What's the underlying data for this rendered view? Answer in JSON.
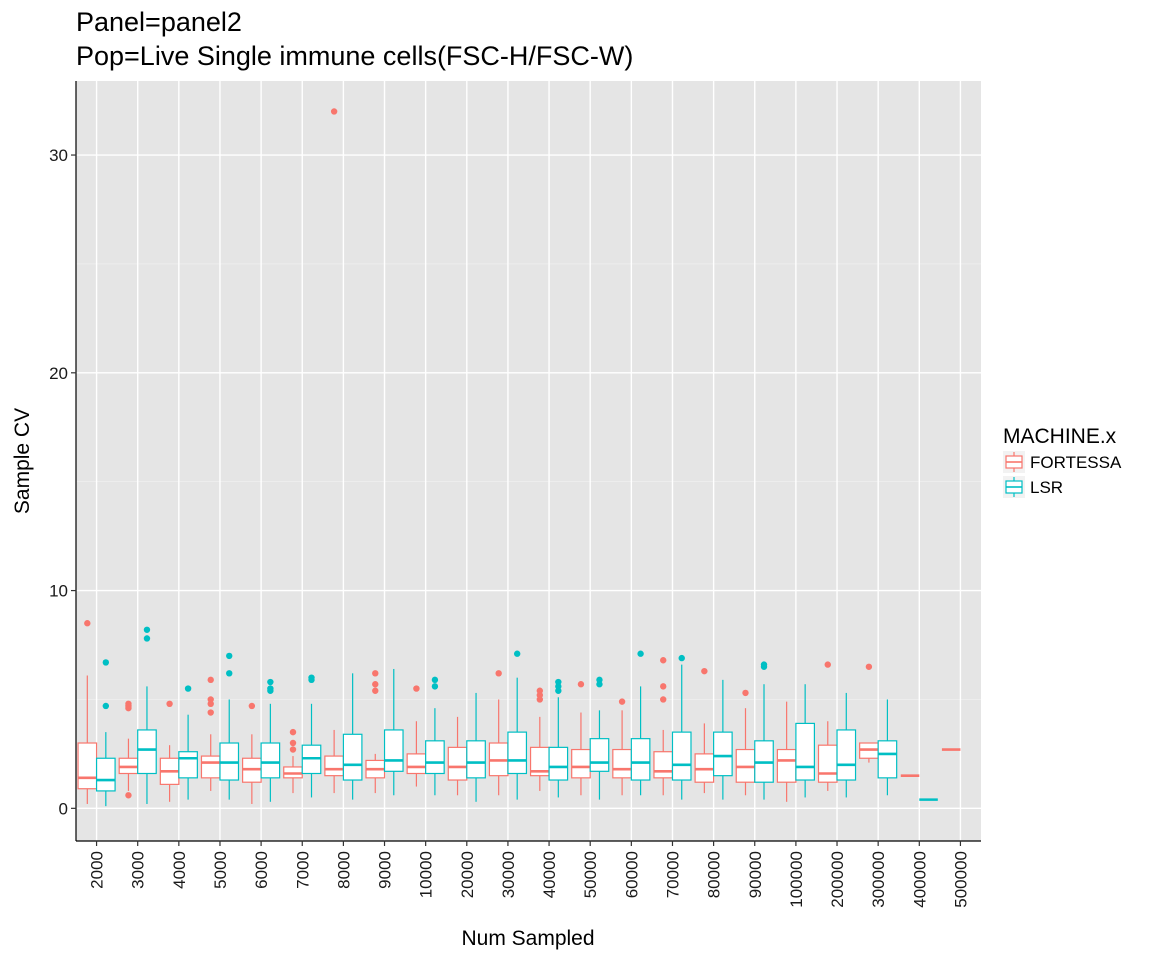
{
  "chart_data": {
    "type": "box",
    "title": "Panel=panel2",
    "subtitle": "Pop=Live Single immune cells(FSC-H/FSC-W)",
    "xlabel": "Num Sampled",
    "ylabel": "Sample CV",
    "ylim": [
      -1.5,
      33.4
    ],
    "y_ticks": [
      0,
      10,
      20,
      30
    ],
    "grid": true,
    "legend": {
      "title": "MACHINE.x",
      "placement": "right"
    },
    "categories": [
      "2000",
      "3000",
      "4000",
      "5000",
      "6000",
      "7000",
      "8000",
      "9000",
      "10000",
      "20000",
      "30000",
      "40000",
      "50000",
      "60000",
      "70000",
      "80000",
      "90000",
      "100000",
      "200000",
      "300000",
      "400000",
      "500000"
    ],
    "series": [
      {
        "name": "FORTESSA",
        "color": "#F8766D",
        "boxes": [
          {
            "cat": "2000",
            "q1": 0.9,
            "median": 1.4,
            "q3": 3.0,
            "lower": 0.2,
            "upper": 6.1,
            "outliers": [
              8.5
            ]
          },
          {
            "cat": "3000",
            "q1": 1.6,
            "median": 1.9,
            "q3": 2.3,
            "lower": 0.8,
            "upper": 3.2,
            "outliers": [
              4.6,
              4.7,
              4.8,
              0.6
            ]
          },
          {
            "cat": "4000",
            "q1": 1.1,
            "median": 1.7,
            "q3": 2.3,
            "lower": 0.3,
            "upper": 2.9,
            "outliers": [
              4.8
            ]
          },
          {
            "cat": "5000",
            "q1": 1.4,
            "median": 2.1,
            "q3": 2.4,
            "lower": 0.8,
            "upper": 3.4,
            "outliers": [
              4.4,
              4.8,
              5.0,
              5.9
            ]
          },
          {
            "cat": "6000",
            "q1": 1.2,
            "median": 1.8,
            "q3": 2.3,
            "lower": 0.2,
            "upper": 3.4,
            "outliers": [
              4.7
            ]
          },
          {
            "cat": "7000",
            "q1": 1.4,
            "median": 1.6,
            "q3": 1.9,
            "lower": 0.7,
            "upper": 2.4,
            "outliers": [
              2.7,
              3.0,
              3.5
            ]
          },
          {
            "cat": "8000",
            "q1": 1.5,
            "median": 1.8,
            "q3": 2.4,
            "lower": 0.7,
            "upper": 3.6,
            "outliers": [
              32.0
            ]
          },
          {
            "cat": "9000",
            "q1": 1.4,
            "median": 1.8,
            "q3": 2.2,
            "lower": 0.7,
            "upper": 2.5,
            "outliers": [
              5.4,
              5.7,
              6.2
            ]
          },
          {
            "cat": "10000",
            "q1": 1.6,
            "median": 1.9,
            "q3": 2.5,
            "lower": 1.0,
            "upper": 4.0,
            "outliers": [
              5.5
            ]
          },
          {
            "cat": "20000",
            "q1": 1.3,
            "median": 1.9,
            "q3": 2.8,
            "lower": 0.6,
            "upper": 4.2,
            "outliers": []
          },
          {
            "cat": "30000",
            "q1": 1.5,
            "median": 2.2,
            "q3": 3.0,
            "lower": 0.6,
            "upper": 5.0,
            "outliers": [
              6.2
            ]
          },
          {
            "cat": "40000",
            "q1": 1.5,
            "median": 1.7,
            "q3": 2.8,
            "lower": 0.8,
            "upper": 4.2,
            "outliers": [
              5.0,
              5.2,
              5.4
            ]
          },
          {
            "cat": "50000",
            "q1": 1.4,
            "median": 1.9,
            "q3": 2.7,
            "lower": 0.6,
            "upper": 4.4,
            "outliers": [
              5.7
            ]
          },
          {
            "cat": "60000",
            "q1": 1.4,
            "median": 1.8,
            "q3": 2.7,
            "lower": 0.6,
            "upper": 4.5,
            "outliers": [
              4.9
            ]
          },
          {
            "cat": "70000",
            "q1": 1.4,
            "median": 1.7,
            "q3": 2.6,
            "lower": 0.6,
            "upper": 3.6,
            "outliers": [
              5.0,
              5.6,
              6.8
            ]
          },
          {
            "cat": "80000",
            "q1": 1.2,
            "median": 1.8,
            "q3": 2.5,
            "lower": 0.7,
            "upper": 3.9,
            "outliers": [
              6.3
            ]
          },
          {
            "cat": "90000",
            "q1": 1.2,
            "median": 1.9,
            "q3": 2.7,
            "lower": 0.6,
            "upper": 4.6,
            "outliers": [
              5.3
            ]
          },
          {
            "cat": "100000",
            "q1": 1.2,
            "median": 2.2,
            "q3": 2.7,
            "lower": 0.3,
            "upper": 4.9,
            "outliers": []
          },
          {
            "cat": "200000",
            "q1": 1.2,
            "median": 1.6,
            "q3": 2.9,
            "lower": 0.8,
            "upper": 4.0,
            "outliers": [
              6.6
            ]
          },
          {
            "cat": "300000",
            "q1": 2.3,
            "median": 2.7,
            "q3": 3.0,
            "lower": 2.1,
            "upper": 3.0,
            "outliers": [
              6.5
            ]
          },
          {
            "cat": "400000",
            "q1": 1.5,
            "median": 1.5,
            "q3": 1.5,
            "lower": 1.5,
            "upper": 1.5,
            "outliers": []
          },
          {
            "cat": "500000",
            "q1": 2.7,
            "median": 2.7,
            "q3": 2.7,
            "lower": 2.7,
            "upper": 2.7,
            "outliers": []
          }
        ]
      },
      {
        "name": "LSR",
        "color": "#00BFC4",
        "boxes": [
          {
            "cat": "2000",
            "q1": 0.8,
            "median": 1.3,
            "q3": 2.3,
            "lower": 0.1,
            "upper": 3.5,
            "outliers": [
              4.7,
              6.7
            ]
          },
          {
            "cat": "3000",
            "q1": 1.6,
            "median": 2.7,
            "q3": 3.6,
            "lower": 0.2,
            "upper": 5.6,
            "outliers": [
              7.8,
              8.2
            ]
          },
          {
            "cat": "4000",
            "q1": 1.4,
            "median": 2.3,
            "q3": 2.6,
            "lower": 0.4,
            "upper": 4.3,
            "outliers": [
              5.5
            ]
          },
          {
            "cat": "5000",
            "q1": 1.3,
            "median": 2.1,
            "q3": 3.0,
            "lower": 0.4,
            "upper": 5.0,
            "outliers": [
              6.2,
              7.0
            ]
          },
          {
            "cat": "6000",
            "q1": 1.4,
            "median": 2.1,
            "q3": 3.0,
            "lower": 0.3,
            "upper": 4.8,
            "outliers": [
              5.4,
              5.5,
              5.8
            ]
          },
          {
            "cat": "7000",
            "q1": 1.6,
            "median": 2.3,
            "q3": 2.9,
            "lower": 0.5,
            "upper": 4.8,
            "outliers": [
              5.9,
              6.0
            ]
          },
          {
            "cat": "8000",
            "q1": 1.3,
            "median": 2.0,
            "q3": 3.4,
            "lower": 0.4,
            "upper": 6.2,
            "outliers": []
          },
          {
            "cat": "9000",
            "q1": 1.7,
            "median": 2.2,
            "q3": 3.6,
            "lower": 0.6,
            "upper": 6.4,
            "outliers": []
          },
          {
            "cat": "10000",
            "q1": 1.6,
            "median": 2.1,
            "q3": 3.1,
            "lower": 0.6,
            "upper": 4.6,
            "outliers": [
              5.6,
              5.9
            ]
          },
          {
            "cat": "20000",
            "q1": 1.4,
            "median": 2.1,
            "q3": 3.1,
            "lower": 0.3,
            "upper": 5.3,
            "outliers": []
          },
          {
            "cat": "30000",
            "q1": 1.6,
            "median": 2.2,
            "q3": 3.5,
            "lower": 0.4,
            "upper": 6.0,
            "outliers": [
              7.1
            ]
          },
          {
            "cat": "40000",
            "q1": 1.3,
            "median": 1.9,
            "q3": 2.8,
            "lower": 0.5,
            "upper": 5.1,
            "outliers": [
              5.4,
              5.6,
              5.8
            ]
          },
          {
            "cat": "50000",
            "q1": 1.7,
            "median": 2.1,
            "q3": 3.2,
            "lower": 0.4,
            "upper": 4.5,
            "outliers": [
              5.7,
              5.9
            ]
          },
          {
            "cat": "60000",
            "q1": 1.3,
            "median": 2.1,
            "q3": 3.2,
            "lower": 0.6,
            "upper": 5.6,
            "outliers": [
              7.1
            ]
          },
          {
            "cat": "70000",
            "q1": 1.3,
            "median": 2.0,
            "q3": 3.5,
            "lower": 0.4,
            "upper": 6.6,
            "outliers": [
              6.9
            ]
          },
          {
            "cat": "80000",
            "q1": 1.5,
            "median": 2.4,
            "q3": 3.5,
            "lower": 0.4,
            "upper": 5.9,
            "outliers": []
          },
          {
            "cat": "90000",
            "q1": 1.2,
            "median": 2.1,
            "q3": 3.1,
            "lower": 0.4,
            "upper": 5.7,
            "outliers": [
              6.5,
              6.6
            ]
          },
          {
            "cat": "100000",
            "q1": 1.3,
            "median": 1.9,
            "q3": 3.9,
            "lower": 0.5,
            "upper": 5.7,
            "outliers": []
          },
          {
            "cat": "200000",
            "q1": 1.3,
            "median": 2.0,
            "q3": 3.6,
            "lower": 0.5,
            "upper": 5.3,
            "outliers": []
          },
          {
            "cat": "300000",
            "q1": 1.4,
            "median": 2.5,
            "q3": 3.1,
            "lower": 0.6,
            "upper": 5.0,
            "outliers": []
          },
          {
            "cat": "400000",
            "q1": 0.4,
            "median": 0.4,
            "q3": 0.4,
            "lower": 0.4,
            "upper": 0.4,
            "outliers": []
          }
        ]
      }
    ]
  }
}
